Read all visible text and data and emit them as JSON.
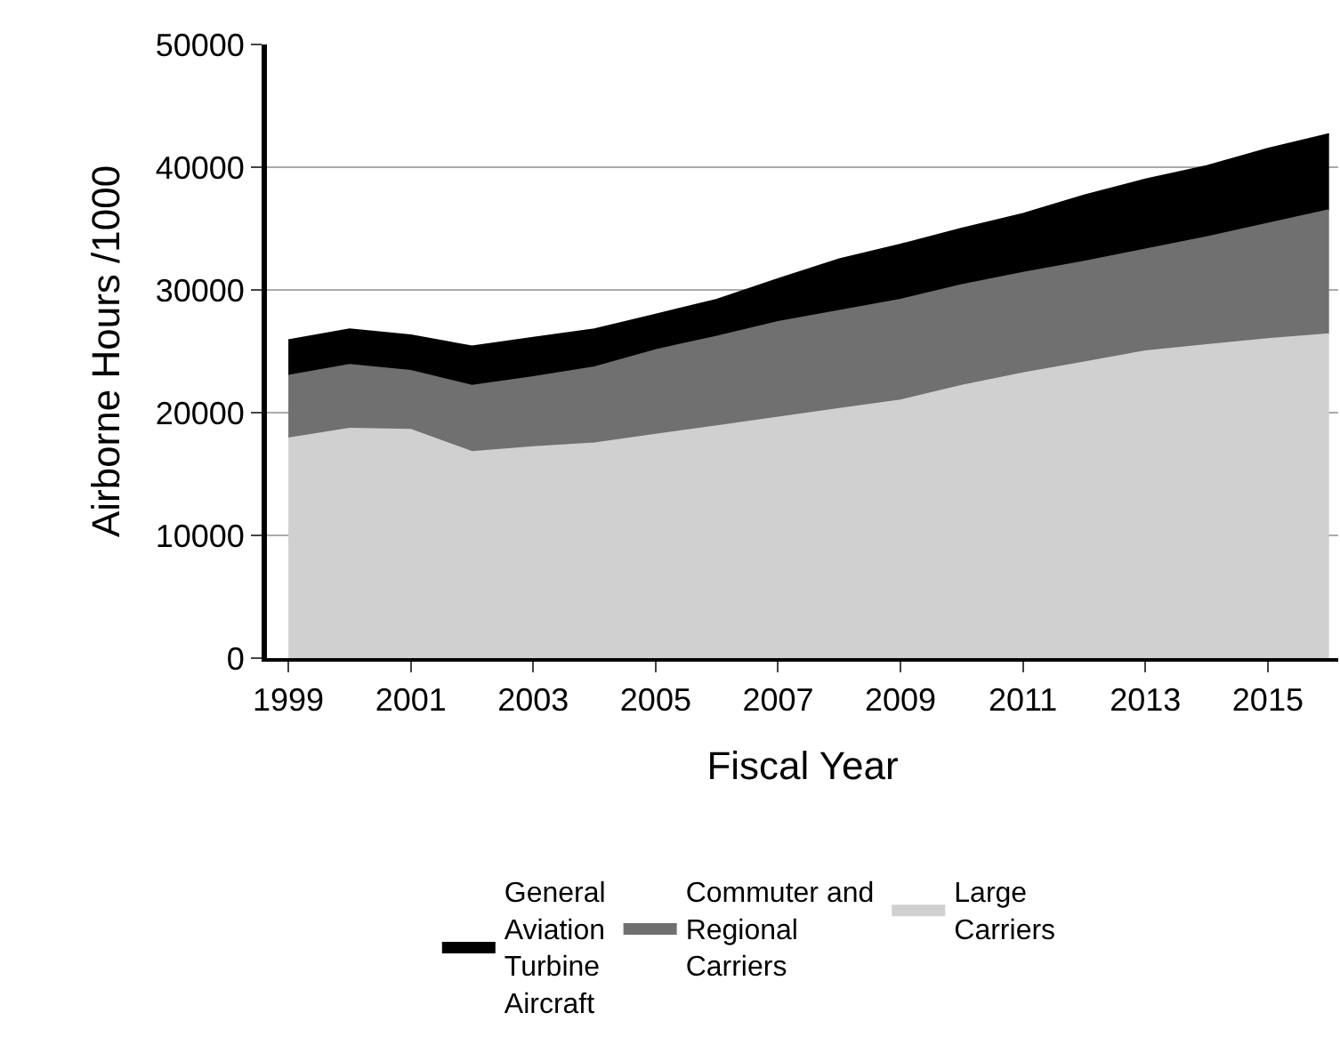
{
  "chart_data": {
    "type": "area",
    "stacked": true,
    "xlabel": "Fiscal Year",
    "ylabel": "Airborne Hours /1000",
    "x": [
      1999,
      2000,
      2001,
      2002,
      2003,
      2004,
      2005,
      2006,
      2007,
      2008,
      2009,
      2010,
      2011,
      2012,
      2013,
      2014,
      2015,
      2016
    ],
    "series": [
      {
        "name": "Large Carriers",
        "color": "#d0d0d0",
        "values": [
          17900,
          18700,
          18600,
          16800,
          17200,
          17500,
          18200,
          18900,
          19600,
          20300,
          21000,
          22200,
          23200,
          24100,
          25000,
          25500,
          26000,
          26400
        ]
      },
      {
        "name": "Commuter and Regional Carriers",
        "color": "#707070",
        "values": [
          5100,
          5200,
          4800,
          5400,
          5700,
          6200,
          6900,
          7300,
          7800,
          8000,
          8200,
          8200,
          8200,
          8200,
          8300,
          8800,
          9400,
          10100
        ]
      },
      {
        "name": "General Aviation Turbine Aircraft",
        "color": "#000000",
        "values": [
          2900,
          2900,
          2900,
          3200,
          3200,
          3100,
          2900,
          3000,
          3500,
          4200,
          4500,
          4600,
          4800,
          5400,
          5700,
          5800,
          6100,
          6200
        ]
      }
    ],
    "xlim": [
      1998.65,
      2016.15
    ],
    "xticks": [
      1999,
      2001,
      2003,
      2005,
      2007,
      2009,
      2011,
      2013,
      2015
    ],
    "ylim": [
      0,
      50000
    ],
    "yticks": [
      0,
      10000,
      20000,
      30000,
      40000,
      50000
    ],
    "grid": "y",
    "legend": "bottom"
  }
}
